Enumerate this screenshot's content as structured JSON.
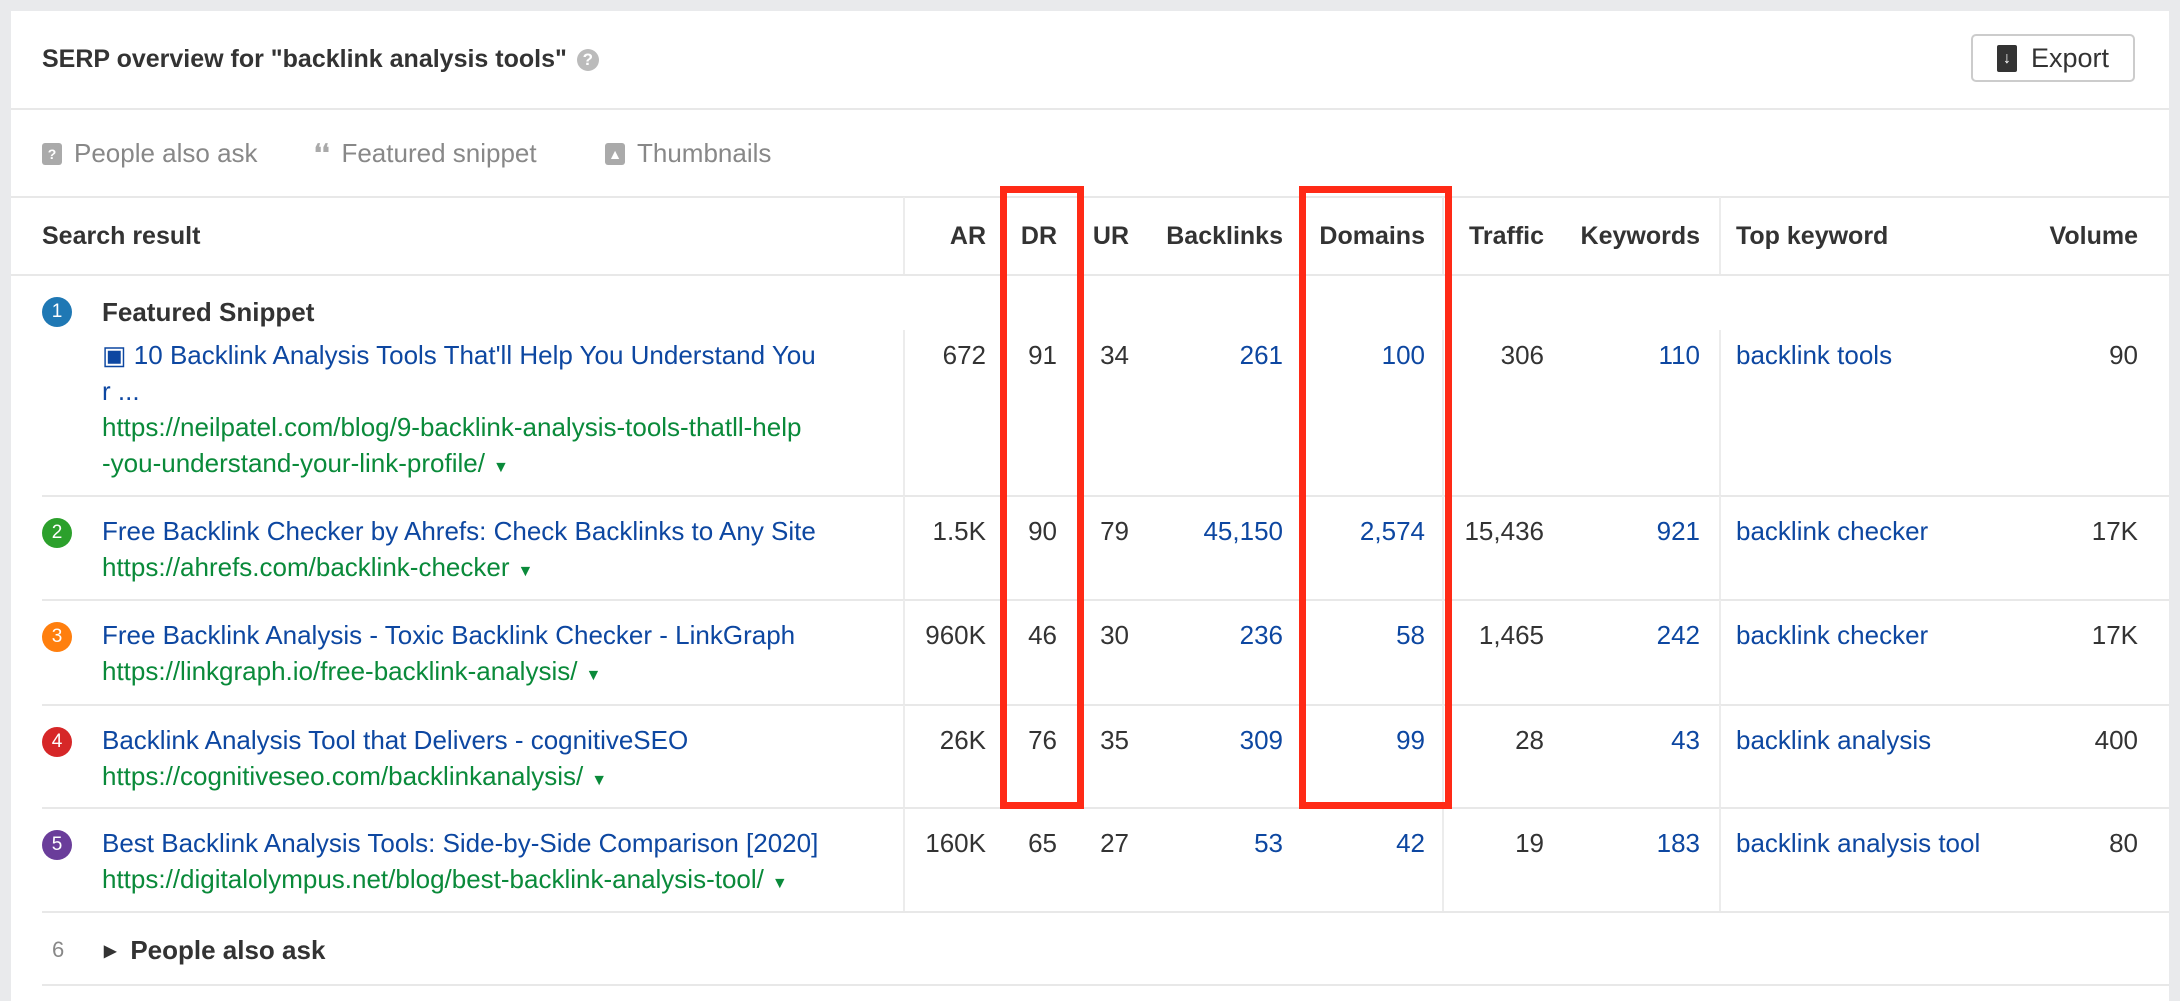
{
  "header": {
    "title": "SERP overview for \"backlink analysis tools\"",
    "help_icon": "?",
    "export_label": "Export"
  },
  "filters": [
    {
      "icon": "question-bubble-icon",
      "glyph": "?",
      "label": "People also ask"
    },
    {
      "icon": "quote-icon",
      "glyph": "❛❛",
      "label": "Featured snippet"
    },
    {
      "icon": "image-icon",
      "glyph": "▲",
      "label": "Thumbnails"
    }
  ],
  "columns": {
    "search_result": "Search result",
    "ar": "AR",
    "dr": "DR",
    "ur": "UR",
    "backlinks": "Backlinks",
    "domains": "Domains",
    "traffic": "Traffic",
    "keywords": "Keywords",
    "top_keyword": "Top keyword",
    "volume": "Volume"
  },
  "colors": {
    "link": "#0d47a1",
    "url": "#0a8a3a",
    "highlight": "#ff2a16"
  },
  "rows": [
    {
      "pos": "1",
      "badge_color": "#1f78b4",
      "label": "Featured Snippet",
      "title_lines": [
        "10 Backlink Analysis Tools That'll Help You Understand You",
        "r ..."
      ],
      "has_image_icon": true,
      "url_lines": [
        "https://neilpatel.com/blog/9-backlink-analysis-tools-thatll-help",
        "-you-understand-your-link-profile/"
      ],
      "ar": "672",
      "dr": "91",
      "ur": "34",
      "backlinks": "261",
      "domains": "100",
      "traffic": "306",
      "keywords": "110",
      "top_keyword": "backlink tools",
      "volume": "90"
    },
    {
      "pos": "2",
      "badge_color": "#2ca02c",
      "title_lines": [
        "Free Backlink Checker by Ahrefs: Check Backlinks to Any Site"
      ],
      "url_lines": [
        "https://ahrefs.com/backlink-checker"
      ],
      "ar": "1.5K",
      "dr": "90",
      "ur": "79",
      "backlinks": "45,150",
      "domains": "2,574",
      "traffic": "15,436",
      "keywords": "921",
      "top_keyword": "backlink checker",
      "volume": "17K"
    },
    {
      "pos": "3",
      "badge_color": "#ff7f0e",
      "title_lines": [
        "Free Backlink Analysis - Toxic Backlink Checker - LinkGraph"
      ],
      "url_lines": [
        "https://linkgraph.io/free-backlink-analysis/"
      ],
      "ar": "960K",
      "dr": "46",
      "ur": "30",
      "backlinks": "236",
      "domains": "58",
      "traffic": "1,465",
      "keywords": "242",
      "top_keyword": "backlink checker",
      "volume": "17K"
    },
    {
      "pos": "4",
      "badge_color": "#d62728",
      "title_lines": [
        "Backlink Analysis Tool that Delivers - cognitiveSEO"
      ],
      "url_lines": [
        "https://cognitiveseo.com/backlinkanalysis/"
      ],
      "ar": "26K",
      "dr": "76",
      "ur": "35",
      "backlinks": "309",
      "domains": "99",
      "traffic": "28",
      "keywords": "43",
      "top_keyword": "backlink analysis",
      "volume": "400"
    },
    {
      "pos": "5",
      "badge_color": "#6a3d9a",
      "title_lines": [
        "Best Backlink Analysis Tools: Side-by-Side Comparison [2020]"
      ],
      "url_lines": [
        "https://digitalolympus.net/blog/best-backlink-analysis-tool/"
      ],
      "ar": "160K",
      "dr": "65",
      "ur": "27",
      "backlinks": "53",
      "domains": "42",
      "traffic": "19",
      "keywords": "183",
      "top_keyword": "backlink analysis tool",
      "volume": "80"
    }
  ],
  "collapsed_row": {
    "pos": "6",
    "label": "People also ask"
  }
}
